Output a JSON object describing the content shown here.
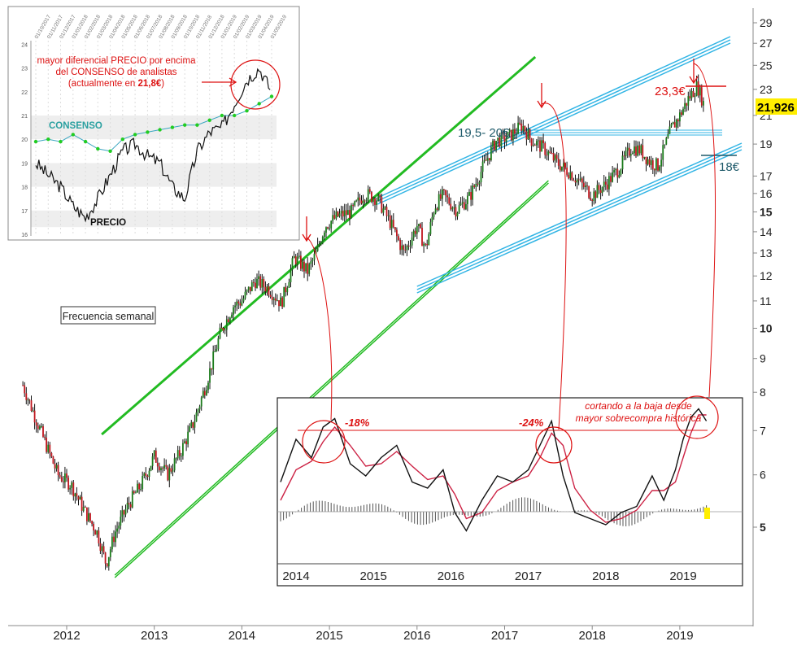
{
  "chart_data": [
    {
      "type": "line",
      "title": "",
      "frequency_label": "Frecuencia semanal",
      "scale": "log",
      "ylim": [
        3.9,
        30
      ],
      "y_ticks": [
        5,
        6,
        7,
        8,
        9,
        10,
        11,
        12,
        13,
        14,
        15,
        16,
        17,
        19,
        21,
        23,
        25,
        27,
        29
      ],
      "y_ticks_bold": [
        5,
        10,
        15
      ],
      "x_ticks": [
        "2012",
        "2013",
        "2014",
        "2015",
        "2016",
        "2017",
        "2018",
        "2019"
      ],
      "last_price_label": "21,926",
      "series": [
        {
          "x": [
            2011.5,
            2011.7,
            2011.9,
            2012.05,
            2012.2,
            2012.35,
            2012.45,
            2012.55,
            2012.7,
            2012.85,
            2013.0,
            2013.15,
            2013.3,
            2013.45,
            2013.6,
            2013.75,
            2013.9,
            2014.0,
            2014.15,
            2014.3,
            2014.45,
            2014.6,
            2014.75,
            2014.85,
            2014.95,
            2015.1,
            2015.25,
            2015.4,
            2015.55,
            2015.7,
            2015.85,
            2016.0,
            2016.1,
            2016.2,
            2016.3,
            2016.45,
            2016.6,
            2016.75,
            2016.9,
            2017.05,
            2017.2,
            2017.3,
            2017.45,
            2017.6,
            2017.75,
            2017.9,
            2018.0,
            2018.15,
            2018.3,
            2018.45,
            2018.55,
            2018.65,
            2018.75,
            2018.9,
            2019.0,
            2019.1,
            2019.2,
            2019.27
          ],
          "values": [
            8.2,
            7.0,
            6.0,
            5.8,
            5.3,
            4.9,
            4.4,
            4.9,
            5.4,
            5.8,
            6.4,
            6.0,
            6.5,
            7.2,
            8.3,
            9.8,
            10.8,
            11.0,
            11.8,
            11.5,
            10.9,
            12.8,
            12.2,
            13.0,
            14.3,
            14.8,
            15.0,
            16.0,
            15.7,
            14.4,
            13.0,
            14.3,
            13.2,
            15.3,
            15.9,
            15.1,
            15.8,
            17.5,
            19.2,
            19.5,
            20.3,
            19.3,
            18.7,
            17.8,
            17.2,
            16.4,
            15.9,
            16.5,
            17.4,
            18.8,
            18.6,
            17.9,
            17.6,
            20.0,
            21.0,
            22.3,
            23.3,
            21.9
          ]
        }
      ],
      "annotations": [
        "19,5- 20€",
        "23,3€",
        "18€"
      ]
    },
    {
      "type": "line",
      "title": "",
      "x_ticks": [
        "2014",
        "2015",
        "2016",
        "2017",
        "2018",
        "2019"
      ],
      "annotations": [
        "-18%",
        "-24%",
        "cortando a la baja desde",
        "mayor sobrecompra histórica"
      ],
      "series": [
        {
          "x": [
            2013.8,
            2014.0,
            2014.2,
            2014.35,
            2014.5,
            2014.7,
            2014.9,
            2015.1,
            2015.3,
            2015.5,
            2015.7,
            2015.9,
            2016.05,
            2016.2,
            2016.4,
            2016.6,
            2016.8,
            2017.0,
            2017.15,
            2017.3,
            2017.45,
            2017.6,
            2017.8,
            2018.0,
            2018.2,
            2018.4,
            2018.6,
            2018.75,
            2018.9,
            2019.0,
            2019.1,
            2019.2,
            2019.3
          ],
          "values": [
            0.45,
            0.8,
            0.65,
            0.9,
            0.97,
            0.6,
            0.5,
            0.65,
            0.75,
            0.45,
            0.4,
            0.55,
            0.2,
            0.05,
            0.3,
            0.5,
            0.45,
            0.55,
            0.75,
            0.95,
            0.5,
            0.2,
            0.15,
            0.1,
            0.2,
            0.25,
            0.5,
            0.3,
            0.55,
            0.8,
            0.98,
            1.05,
            0.95
          ]
        },
        {
          "x": [
            2013.8,
            2014.0,
            2014.2,
            2014.35,
            2014.5,
            2014.7,
            2014.9,
            2015.1,
            2015.3,
            2015.5,
            2015.7,
            2015.9,
            2016.05,
            2016.2,
            2016.4,
            2016.6,
            2016.8,
            2017.0,
            2017.15,
            2017.3,
            2017.45,
            2017.6,
            2017.8,
            2018.0,
            2018.2,
            2018.4,
            2018.6,
            2018.75,
            2018.9,
            2019.0,
            2019.1,
            2019.2,
            2019.3
          ],
          "values": [
            0.3,
            0.55,
            0.62,
            0.78,
            0.9,
            0.75,
            0.58,
            0.6,
            0.7,
            0.58,
            0.47,
            0.5,
            0.35,
            0.15,
            0.2,
            0.38,
            0.45,
            0.5,
            0.65,
            0.85,
            0.75,
            0.4,
            0.22,
            0.12,
            0.15,
            0.22,
            0.38,
            0.38,
            0.45,
            0.65,
            0.85,
            1.0,
            1.0
          ]
        }
      ]
    },
    {
      "type": "line",
      "title": "",
      "ylim": [
        16,
        24
      ],
      "y_ticks": [
        16,
        17,
        18,
        19,
        20,
        21,
        22,
        23,
        24
      ],
      "x_ticks": [
        "01/10/2017",
        "01/11/2017",
        "01/12/2017",
        "01/01/2018",
        "01/02/2018",
        "01/03/2018",
        "01/04/2018",
        "01/05/2018",
        "01/06/2018",
        "01/07/2018",
        "01/08/2018",
        "01/09/2018",
        "01/10/2018",
        "01/11/2018",
        "01/12/2018",
        "01/01/2019",
        "01/02/2019",
        "01/03/2019",
        "01/04/2019",
        "01/05/2019"
      ],
      "annotations": [
        "mayor diferencial PRECIO por encima",
        "del CONSENSO de analistas",
        "(actualmente en ",
        "21,8€",
        ")"
      ],
      "series": [
        {
          "name": "CONSENSO",
          "values": [
            19.9,
            20.0,
            19.9,
            20.2,
            19.9,
            19.6,
            19.5,
            20.0,
            20.2,
            20.3,
            20.4,
            20.5,
            20.6,
            20.6,
            20.8,
            21.0,
            21.0,
            21.2,
            21.5,
            21.8
          ]
        },
        {
          "name": "PRECIO",
          "values": [
            19.0,
            18.5,
            18.0,
            17.2,
            16.7,
            17.5,
            18.5,
            19.5,
            19.8,
            19.3,
            19.0,
            18.0,
            17.5,
            19.5,
            20.3,
            20.5,
            21.5,
            22.5,
            23.0,
            22.0
          ]
        }
      ]
    }
  ],
  "colors": {
    "price_up": "#1a7a1a",
    "price_down": "#c0161e",
    "green_channel": "#22bb22",
    "blue_channel": "#33b5e5",
    "annotation_red": "#dd1111",
    "consensus": "#2aa0a0",
    "consensus_marker": "#22cc22",
    "last_price_bg": "#ffee00"
  }
}
